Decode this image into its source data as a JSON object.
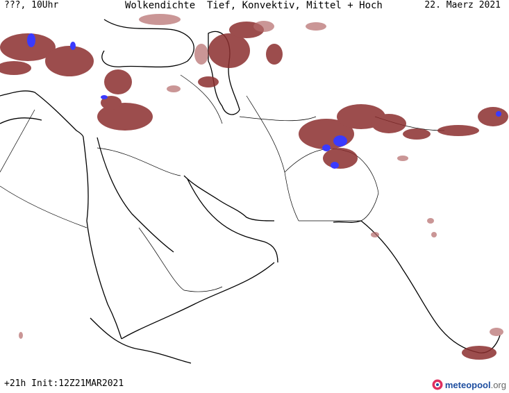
{
  "header": {
    "run_label": "???, 10Uhr",
    "title": "Wolkendichte  Tief, Konvektiv, Mittel + Hoch",
    "date": "22. Maerz 2021"
  },
  "footer": {
    "init": "+21h Init:12Z21MAR2021"
  },
  "brand": {
    "name": "meteopool",
    "suffix": ".org",
    "logo_icon": "meteopool-logo-icon"
  },
  "colors": {
    "cloud_dense": "#8b2e2e",
    "cloud_light": "#b46a6a",
    "convective": "#3a3aff",
    "coastline": "#000000",
    "border": "#000000"
  }
}
